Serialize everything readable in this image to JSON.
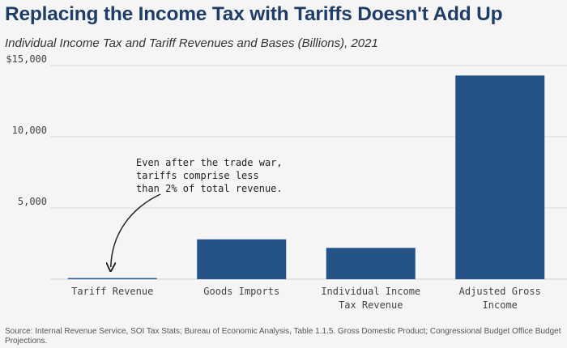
{
  "title": "Replacing the Income Tax with Tariffs Doesn't Add Up",
  "subtitle": "Individual Income Tax and Tariff Revenues and Bases (Billions), 2021",
  "source": "Source: Internal Revenue Service, SOI Tax Stats; Bureau of Economic Analysis, Table 1.1.5. Gross Domestic Product; Congressional Budget Office Budget Projections.",
  "colors": {
    "bar": "#245388",
    "grid": "#dddddd",
    "title": "#1f3d66",
    "background": "#f5f5f5"
  },
  "chart_data": {
    "type": "bar",
    "categories": [
      [
        "Tariff Revenue"
      ],
      [
        "Goods Imports"
      ],
      [
        "Individual Income",
        "Tax Revenue"
      ],
      [
        "Adjusted Gross",
        "Income"
      ]
    ],
    "values": [
      80,
      2800,
      2200,
      14300
    ],
    "ylim": [
      0,
      15000
    ],
    "yticks": [
      5000,
      10000,
      15000
    ],
    "ytick_labels": [
      "5,000",
      "10,000",
      "$15,000"
    ],
    "grid": true,
    "annotation": {
      "lines": [
        "Even after the trade war,",
        "tariffs comprise less",
        "than 2% of total revenue."
      ],
      "target_category": 0
    }
  }
}
